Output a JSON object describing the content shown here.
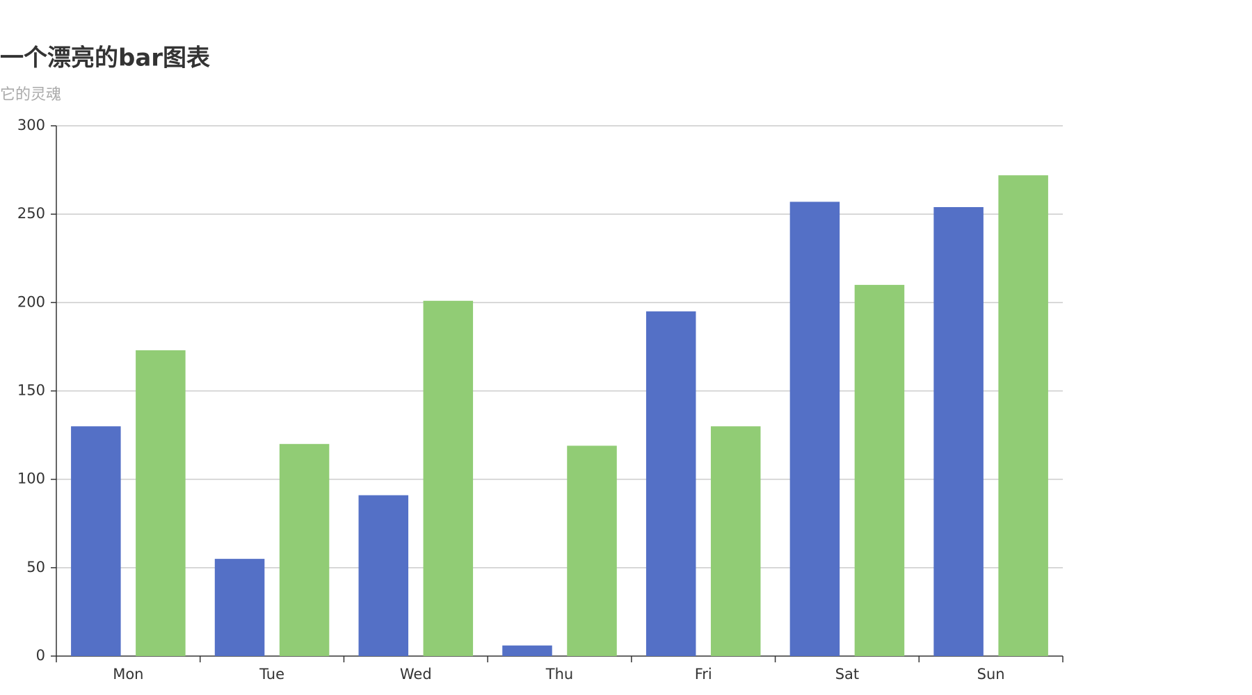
{
  "chart_data": {
    "type": "bar",
    "title": "一个漂亮的bar图表",
    "subtitle": "它的灵魂",
    "categories": [
      "Mon",
      "Tue",
      "Wed",
      "Thu",
      "Fri",
      "Sat",
      "Sun"
    ],
    "series": [
      {
        "color": "#5470c6",
        "values": [
          130,
          55,
          91,
          6,
          195,
          257,
          254
        ]
      },
      {
        "color": "#91cc75",
        "values": [
          173,
          120,
          201,
          119,
          130,
          210,
          272
        ]
      }
    ],
    "ylim": [
      0,
      300
    ],
    "yticks": [
      0,
      50,
      100,
      150,
      200,
      250,
      300
    ],
    "grid": true
  }
}
